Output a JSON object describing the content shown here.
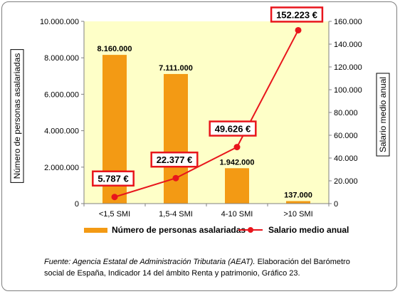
{
  "chart_data": {
    "type": "bar+line",
    "categories": [
      "<1,5 SMI",
      "1,5-4 SMI",
      "4-10 SMI",
      ">10 SMI"
    ],
    "series": [
      {
        "name": "Número de personas asalariadas",
        "type": "bar",
        "axis": "left",
        "values": [
          8160000,
          7111000,
          1942000,
          137000
        ],
        "labels": [
          "8.160.000",
          "7.111.000",
          "1.942.000",
          "137.000"
        ],
        "color": "#f39a14"
      },
      {
        "name": "Salario medio anual",
        "type": "line",
        "axis": "right",
        "values": [
          5787,
          22377,
          49626,
          152223
        ],
        "labels": [
          "5.787 €",
          "22.377 €",
          "49.626 €",
          "152.223 €"
        ],
        "color": "#e8151c"
      }
    ],
    "ylabel_left": "Número de personas asalariadas",
    "ylabel_right": "Salario medio anual",
    "ylim_left": [
      0,
      10000000
    ],
    "ylim_right": [
      0,
      160000
    ],
    "yticks_left": [
      "0",
      "2.000.000",
      "4.000.000",
      "6.000.000",
      "8.000.000",
      "10.000.000"
    ],
    "yticks_right": [
      "0",
      "20.000",
      "40.000",
      "60.000",
      "80.000",
      "100.000",
      "120.000",
      "140.000",
      "160.000"
    ],
    "plot_background": "#feffc8",
    "grid": false,
    "legend": "bottom"
  },
  "legend": {
    "bars_label": "Número de personas asalariadas",
    "line_label": "Salario medio anual"
  },
  "source": {
    "italic_part": "Fuente: Agencia Estatal de Administración Tributaria (AEAT).",
    "rest": " Elaboración del Barómetro social de España,  Indicador 14 del ámbito Renta y patrimonio, Gráfico 23."
  }
}
